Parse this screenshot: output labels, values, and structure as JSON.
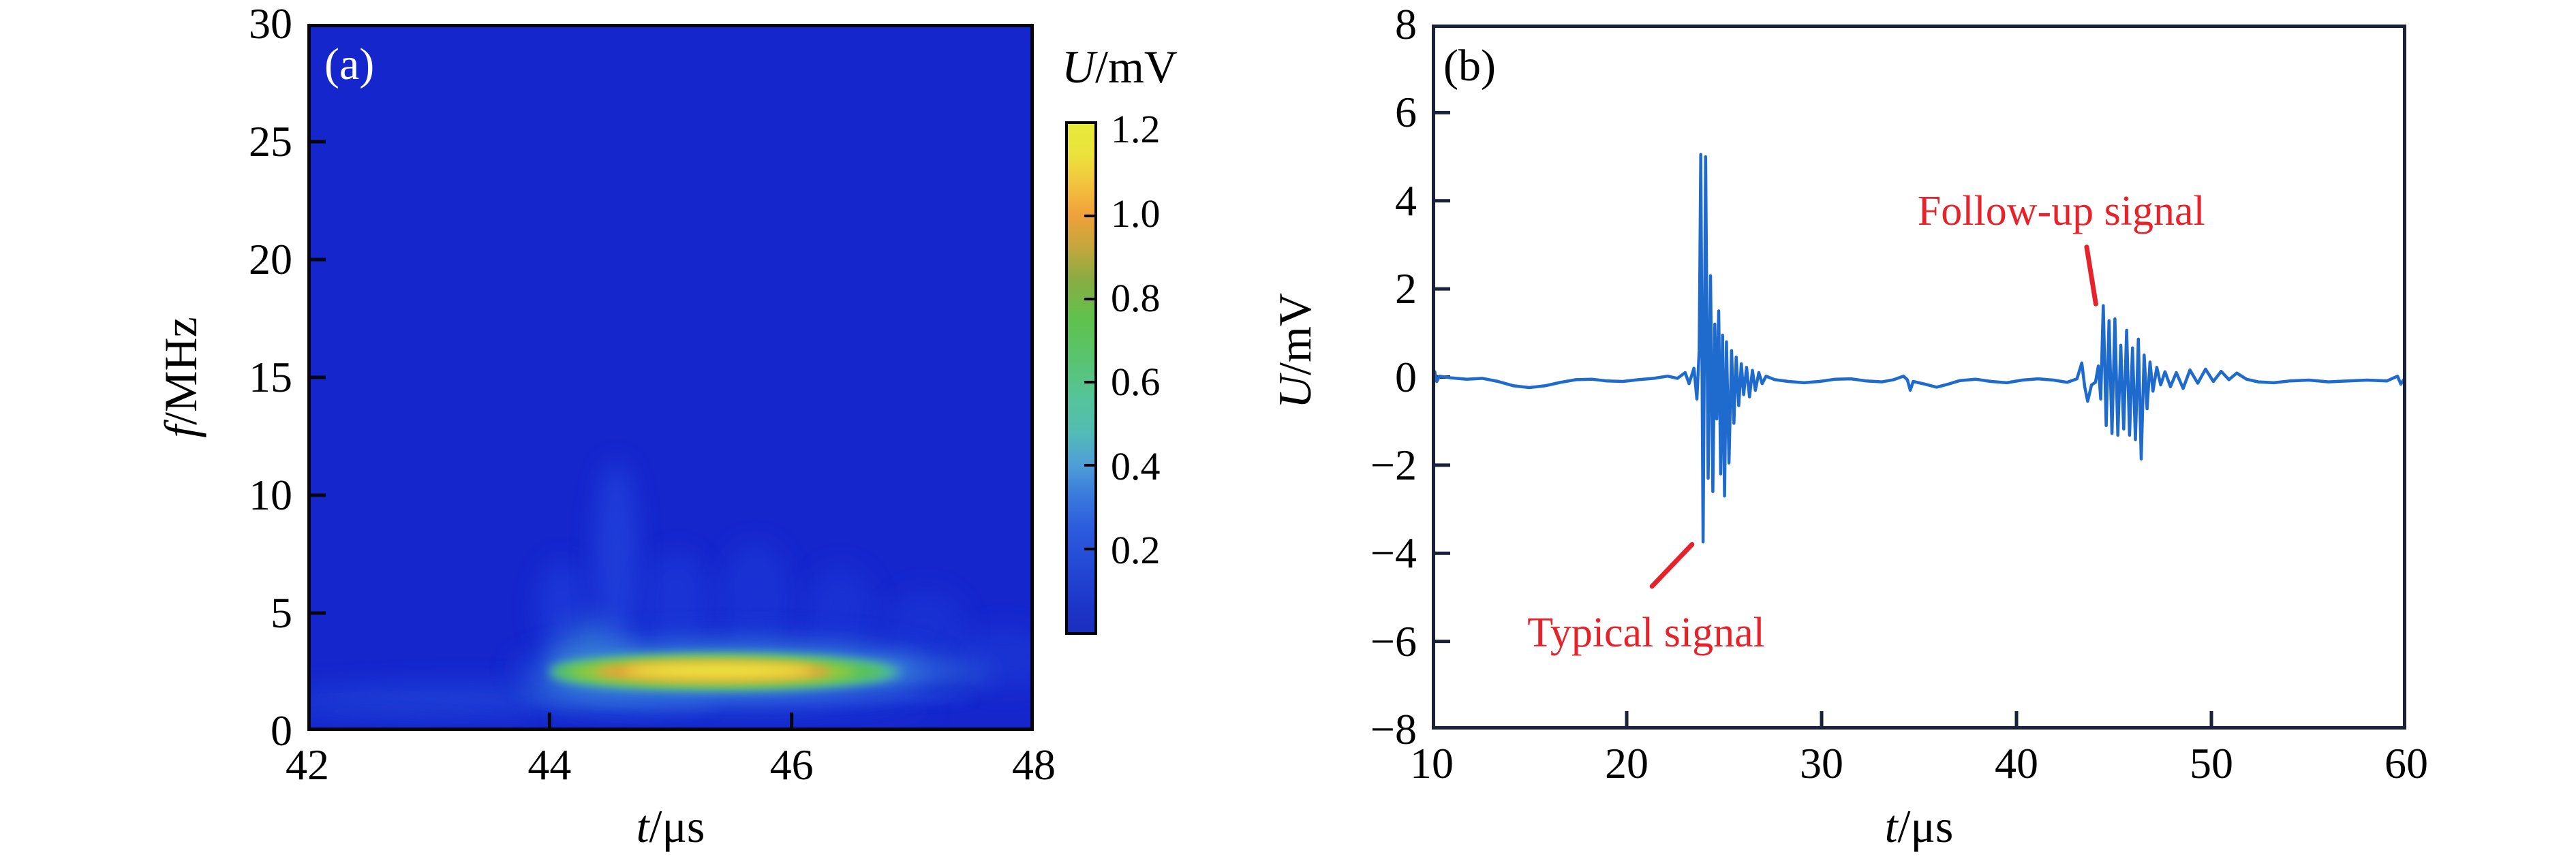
{
  "figure": {
    "background": "#ffffff"
  },
  "chart_data": [
    {
      "type": "heatmap",
      "panel_tag": "(a)",
      "panel_tag_color": "#ffffff",
      "xlabel": {
        "var": "t",
        "unit": "/μs"
      },
      "ylabel": {
        "var": "f",
        "unit": "/MHz"
      },
      "xlim": [
        42,
        48
      ],
      "ylim": [
        0,
        30
      ],
      "x_ticks": [
        {
          "v": 42,
          "label": "42"
        },
        {
          "v": 44,
          "label": "44"
        },
        {
          "v": 46,
          "label": "46"
        },
        {
          "v": 48,
          "label": "48"
        }
      ],
      "y_ticks": [
        {
          "v": 0,
          "label": "0"
        },
        {
          "v": 5,
          "label": "5"
        },
        {
          "v": 10,
          "label": "10"
        },
        {
          "v": 15,
          "label": "15"
        },
        {
          "v": 20,
          "label": "20"
        },
        {
          "v": 25,
          "label": "25"
        },
        {
          "v": 30,
          "label": "30"
        }
      ],
      "background_color": "#1526cd",
      "axis_color": "#05070d",
      "hotspot_summary": {
        "t_center": 45.4,
        "f_center": 2.5,
        "t_span": [
          43.9,
          47.4
        ],
        "f_span": [
          1.8,
          3.4
        ],
        "peak_value_mV": 1.2,
        "description": "main energy concentration near 2.5 MHz between 44 and 47.5 us"
      },
      "intensity_blobs": [
        {
          "t": 43.6,
          "f": 1.45,
          "rt": 1.75,
          "rf": 0.5,
          "color": "#2b5ce0",
          "opacity": 0.5,
          "soft": true
        },
        {
          "t": 42.8,
          "f": 0.8,
          "rt": 1.1,
          "rf": 0.3,
          "color": "#2450da",
          "opacity": 0.5,
          "soft": true
        },
        {
          "t": 45.6,
          "f": 0.85,
          "rt": 1.6,
          "rf": 0.3,
          "color": "#2450da",
          "opacity": 0.45,
          "soft": true
        },
        {
          "t": 44.6,
          "f": 1.7,
          "rt": 0.8,
          "rf": 0.55,
          "color": "#3f9bd5",
          "opacity": 0.6,
          "soft": true
        },
        {
          "t": 44.35,
          "f": 3.4,
          "rt": 0.32,
          "rf": 1.35,
          "color": "#3f9bd5",
          "opacity": 0.55,
          "soft": true,
          "rot": 8
        },
        {
          "t": 44.45,
          "f": 2.6,
          "rt": 0.4,
          "rf": 0.8,
          "color": "#54c1b2",
          "opacity": 0.55,
          "soft": true,
          "rot": 8
        },
        {
          "t": 44.1,
          "f": 5.2,
          "rt": 0.2,
          "rf": 2.0,
          "color": "#2347e0",
          "opacity": 0.5,
          "soft": true
        },
        {
          "t": 44.55,
          "f": 7.2,
          "rt": 0.17,
          "rf": 4.2,
          "color": "#2c56e6",
          "opacity": 0.5,
          "soft": true
        },
        {
          "t": 45.05,
          "f": 5.4,
          "rt": 0.28,
          "rf": 2.2,
          "color": "#2247e0",
          "opacity": 0.4,
          "soft": true
        },
        {
          "t": 45.7,
          "f": 5.6,
          "rt": 0.3,
          "rf": 2.4,
          "color": "#2247e0",
          "opacity": 0.35,
          "soft": true
        },
        {
          "t": 46.4,
          "f": 5.0,
          "rt": 0.3,
          "rf": 2.0,
          "color": "#2247e0",
          "opacity": 0.32,
          "soft": true
        },
        {
          "t": 47.1,
          "f": 4.3,
          "rt": 0.35,
          "rf": 1.7,
          "color": "#2247e0",
          "opacity": 0.3,
          "soft": true
        },
        {
          "t": 47.75,
          "f": 3.1,
          "rt": 0.42,
          "rf": 1.3,
          "color": "#2850e0",
          "opacity": 0.3,
          "soft": true
        },
        {
          "t": 45.7,
          "f": 1.35,
          "rt": 1.8,
          "rf": 0.24,
          "color": "#2a55e2",
          "opacity": 0.55,
          "soft": false
        },
        {
          "t": 45.5,
          "f": 2.6,
          "rt": 1.8,
          "rf": 1.5,
          "color": "#2553dc",
          "opacity": 0.6,
          "soft": true
        },
        {
          "t": 45.5,
          "f": 2.55,
          "rt": 1.55,
          "rf": 0.95,
          "color": "#3f97db",
          "opacity": 0.85,
          "soft": true
        },
        {
          "t": 47.15,
          "f": 2.45,
          "rt": 0.5,
          "rf": 0.4,
          "color": "#3f97db",
          "opacity": 0.5,
          "soft": true
        },
        {
          "t": 45.45,
          "f": 2.5,
          "rt": 1.45,
          "rf": 0.75,
          "color": "#50c49a",
          "opacity": 0.9,
          "soft": false
        },
        {
          "t": 45.4,
          "f": 2.5,
          "rt": 1.38,
          "rf": 0.62,
          "color": "#5ac352",
          "opacity": 1.0,
          "soft": false
        },
        {
          "t": 45.35,
          "f": 2.5,
          "rt": 1.18,
          "rf": 0.5,
          "color": "#9ccc3b",
          "opacity": 1.0,
          "soft": false
        },
        {
          "t": 45.35,
          "f": 2.52,
          "rt": 0.98,
          "rf": 0.4,
          "color": "#f09e38",
          "opacity": 1.0,
          "soft": false
        },
        {
          "t": 45.4,
          "f": 2.55,
          "rt": 0.78,
          "rf": 0.3,
          "color": "#eae83d",
          "opacity": 1.0,
          "soft": false
        }
      ]
    },
    {
      "type": "line",
      "panel_tag": "(b)",
      "panel_tag_color": "#000000",
      "xlabel": {
        "var": "t",
        "unit": "/μs"
      },
      "ylabel": {
        "var": "U",
        "unit": "/mV"
      },
      "xlim": [
        10,
        60
      ],
      "ylim": [
        -8,
        8
      ],
      "x_ticks": [
        {
          "v": 10,
          "label": "10"
        },
        {
          "v": 20,
          "label": "20"
        },
        {
          "v": 30,
          "label": "30"
        },
        {
          "v": 40,
          "label": "40"
        },
        {
          "v": 50,
          "label": "50"
        },
        {
          "v": 60,
          "label": "60"
        }
      ],
      "y_ticks": [
        {
          "v": 8,
          "label": "8"
        },
        {
          "v": 6,
          "label": "6"
        },
        {
          "v": 4,
          "label": "4"
        },
        {
          "v": 2,
          "label": "2"
        },
        {
          "v": 0,
          "label": "0"
        },
        {
          "v": -2,
          "label": "−2"
        },
        {
          "v": -4,
          "label": "−4"
        },
        {
          "v": -6,
          "label": "−6"
        },
        {
          "v": -8,
          "label": "−8"
        }
      ],
      "axis_color": "#1a2138",
      "line_color": "#1e6bcd",
      "points": [
        [
          10,
          0.03
        ],
        [
          10.15,
          0.12
        ],
        [
          10.25,
          -0.1
        ],
        [
          10.4,
          0.02
        ],
        [
          11,
          -0.02
        ],
        [
          11.8,
          -0.05
        ],
        [
          12.6,
          -0.03
        ],
        [
          13.4,
          -0.1
        ],
        [
          14.2,
          -0.2
        ],
        [
          15,
          -0.24
        ],
        [
          15.8,
          -0.2
        ],
        [
          16.6,
          -0.12
        ],
        [
          17.4,
          -0.06
        ],
        [
          18.2,
          -0.05
        ],
        [
          19,
          -0.09
        ],
        [
          19.8,
          -0.1
        ],
        [
          20.6,
          -0.06
        ],
        [
          21.4,
          -0.03
        ],
        [
          22.1,
          0.02
        ],
        [
          22.6,
          -0.03
        ],
        [
          23,
          0.1
        ],
        [
          23.2,
          -0.15
        ],
        [
          23.45,
          0.2
        ],
        [
          23.6,
          -0.5
        ],
        [
          23.72,
          0.6
        ],
        [
          23.8,
          5.05
        ],
        [
          23.92,
          -3.74
        ],
        [
          24.05,
          5.0
        ],
        [
          24.18,
          -2.3
        ],
        [
          24.3,
          2.3
        ],
        [
          24.42,
          -2.6
        ],
        [
          24.52,
          1.2
        ],
        [
          24.62,
          -0.95
        ],
        [
          24.72,
          1.5
        ],
        [
          24.82,
          -2.2
        ],
        [
          24.92,
          0.95
        ],
        [
          25.02,
          -2.7
        ],
        [
          25.12,
          0.8
        ],
        [
          25.25,
          -1.95
        ],
        [
          25.38,
          0.6
        ],
        [
          25.5,
          -1.05
        ],
        [
          25.62,
          0.45
        ],
        [
          25.75,
          -0.65
        ],
        [
          25.88,
          0.3
        ],
        [
          26,
          -0.4
        ],
        [
          26.15,
          0.22
        ],
        [
          26.3,
          -0.45
        ],
        [
          26.45,
          0.15
        ],
        [
          26.6,
          -0.3
        ],
        [
          26.78,
          0.1
        ],
        [
          26.95,
          -0.15
        ],
        [
          27.15,
          0.02
        ],
        [
          27.6,
          -0.06
        ],
        [
          28.3,
          -0.1
        ],
        [
          29.1,
          -0.13
        ],
        [
          29.9,
          -0.1
        ],
        [
          30.7,
          -0.05
        ],
        [
          31.5,
          -0.04
        ],
        [
          32.3,
          -0.09
        ],
        [
          33.1,
          -0.11
        ],
        [
          33.7,
          -0.06
        ],
        [
          34.2,
          0.02
        ],
        [
          34.4,
          -0.06
        ],
        [
          34.55,
          -0.3
        ],
        [
          34.7,
          -0.1
        ],
        [
          35.3,
          -0.16
        ],
        [
          35.9,
          -0.23
        ],
        [
          36.5,
          -0.16
        ],
        [
          37.1,
          -0.08
        ],
        [
          37.9,
          -0.05
        ],
        [
          38.7,
          -0.1
        ],
        [
          39.5,
          -0.13
        ],
        [
          40.3,
          -0.07
        ],
        [
          41.1,
          -0.04
        ],
        [
          41.9,
          -0.07
        ],
        [
          42.6,
          -0.12
        ],
        [
          43.1,
          -0.04
        ],
        [
          43.35,
          0.32
        ],
        [
          43.5,
          -0.22
        ],
        [
          43.65,
          -0.55
        ],
        [
          43.85,
          -0.18
        ],
        [
          44.05,
          -0.12
        ],
        [
          44.2,
          0.25
        ],
        [
          44.32,
          -0.5
        ],
        [
          44.45,
          1.62
        ],
        [
          44.6,
          -1.1
        ],
        [
          44.75,
          1.28
        ],
        [
          44.9,
          -1.28
        ],
        [
          45.05,
          1.32
        ],
        [
          45.2,
          -1.32
        ],
        [
          45.35,
          0.72
        ],
        [
          45.5,
          -1.18
        ],
        [
          45.65,
          1.06
        ],
        [
          45.8,
          -1.32
        ],
        [
          45.95,
          0.66
        ],
        [
          46.1,
          -1.42
        ],
        [
          46.25,
          0.86
        ],
        [
          46.4,
          -1.86
        ],
        [
          46.55,
          0.5
        ],
        [
          46.7,
          -0.72
        ],
        [
          46.85,
          0.34
        ],
        [
          47,
          -0.32
        ],
        [
          47.2,
          0.22
        ],
        [
          47.4,
          -0.18
        ],
        [
          47.62,
          0.12
        ],
        [
          47.9,
          -0.22
        ],
        [
          48.2,
          0.1
        ],
        [
          48.55,
          -0.26
        ],
        [
          48.9,
          0.16
        ],
        [
          49.3,
          -0.14
        ],
        [
          49.7,
          0.18
        ],
        [
          50.1,
          -0.1
        ],
        [
          50.5,
          0.13
        ],
        [
          50.9,
          -0.06
        ],
        [
          51.3,
          0.09
        ],
        [
          51.8,
          -0.05
        ],
        [
          52.4,
          -0.11
        ],
        [
          53.2,
          -0.13
        ],
        [
          54,
          -0.09
        ],
        [
          55,
          -0.07
        ],
        [
          56,
          -0.11
        ],
        [
          57,
          -0.09
        ],
        [
          58,
          -0.07
        ],
        [
          59,
          -0.09
        ],
        [
          59.55,
          0.02
        ],
        [
          59.72,
          -0.16
        ],
        [
          59.9,
          -0.04
        ],
        [
          60,
          -0.02
        ]
      ],
      "annotations": [
        {
          "id": "typical-signal",
          "text": "Typical signal",
          "color": "#e6232b",
          "text_center": [
            21.0,
            -5.8
          ],
          "leader": [
            [
              21.3,
              -4.75
            ],
            [
              23.35,
              -3.8
            ]
          ]
        },
        {
          "id": "follow-up-signal",
          "text": "Follow-up signal",
          "color": "#e6232b",
          "text_center": [
            42.3,
            3.77
          ],
          "leader": [
            [
              43.6,
              2.95
            ],
            [
              44.07,
              1.66
            ]
          ]
        }
      ]
    }
  ],
  "colorbar": {
    "title": {
      "var": "U",
      "unit": "/mV"
    },
    "range": [
      0,
      1.22
    ],
    "ticks": [
      {
        "v": 1.2,
        "label": "1.2",
        "mark": false
      },
      {
        "v": 1.0,
        "label": "1.0",
        "mark": true
      },
      {
        "v": 0.8,
        "label": "0.8",
        "mark": true
      },
      {
        "v": 0.6,
        "label": "0.6",
        "mark": true
      },
      {
        "v": 0.4,
        "label": "0.4",
        "mark": true
      },
      {
        "v": 0.2,
        "label": "0.2",
        "mark": true
      }
    ],
    "gradient_stops": [
      {
        "v": 0.0,
        "color": "#1b2fc0"
      },
      {
        "v": 0.06,
        "color": "#1c35c8"
      },
      {
        "v": 0.15,
        "color": "#2247d4"
      },
      {
        "v": 0.25,
        "color": "#2c5cde"
      },
      {
        "v": 0.33,
        "color": "#3a7bdc"
      },
      {
        "v": 0.4,
        "color": "#4e9dd8"
      },
      {
        "v": 0.48,
        "color": "#53bcb4"
      },
      {
        "v": 0.56,
        "color": "#55c49a"
      },
      {
        "v": 0.65,
        "color": "#58c472"
      },
      {
        "v": 0.75,
        "color": "#5fc24d"
      },
      {
        "v": 0.85,
        "color": "#8cab42"
      },
      {
        "v": 0.93,
        "color": "#c7a63c"
      },
      {
        "v": 1.0,
        "color": "#f0a03a"
      },
      {
        "v": 1.08,
        "color": "#f2c53e"
      },
      {
        "v": 1.15,
        "color": "#ebe43c"
      },
      {
        "v": 1.22,
        "color": "#e7e839"
      }
    ]
  }
}
